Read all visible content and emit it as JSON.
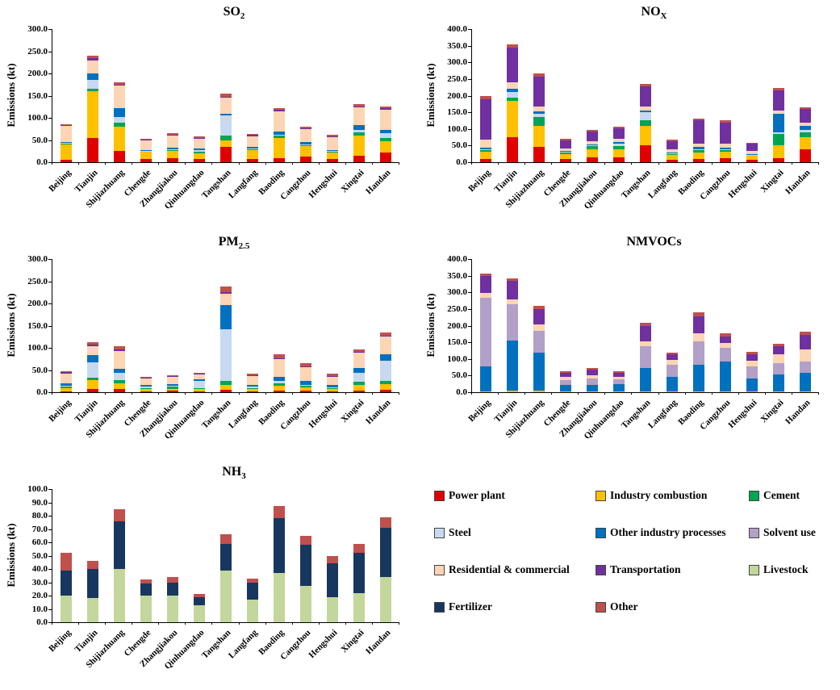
{
  "colors": {
    "power": "#E00000",
    "industry_combustion": "#FFC000",
    "cement": "#00A550",
    "steel": "#C6D9F1",
    "other_industry": "#0070C0",
    "solvent": "#B1A0C7",
    "residential": "#FCD5B4",
    "transportation": "#7030A0",
    "livestock": "#C3D69B",
    "fertilizer": "#17375E",
    "other": "#C0504D"
  },
  "legend": {
    "items": [
      {
        "key": "power",
        "label": "Power plant"
      },
      {
        "key": "industry_combustion",
        "label": "Industry combustion"
      },
      {
        "key": "cement",
        "label": "Cement"
      },
      {
        "key": "steel",
        "label": "Steel"
      },
      {
        "key": "other_industry",
        "label": "Other industry processes"
      },
      {
        "key": "solvent",
        "label": "Solvent use"
      },
      {
        "key": "residential",
        "label": "Residential & commercial"
      },
      {
        "key": "transportation",
        "label": "Transportation"
      },
      {
        "key": "livestock",
        "label": "Livestock"
      },
      {
        "key": "fertilizer",
        "label": "Fertilizer"
      },
      {
        "key": "other",
        "label": "Other"
      }
    ]
  },
  "chart_data": [
    {
      "type": "bar",
      "stacked": true,
      "title_main": "SO",
      "title_sub": "2",
      "ylabel": "Emissions (kt)",
      "ymax": 300,
      "ystep": 50,
      "cities": [
        "Beijing",
        "Tianjin",
        "Shijiazhuang",
        "Chengde",
        "Zhangjiakou",
        "Qinhuangdao",
        "Tangshan",
        "Langfang",
        "Baoding",
        "Cangzhou",
        "Hengshui",
        "Xingtai",
        "Handan"
      ],
      "series": [
        {
          "key": "power",
          "values": [
            5,
            55,
            25,
            8,
            10,
            8,
            35,
            8,
            10,
            12,
            8,
            15,
            22
          ]
        },
        {
          "key": "industry_combustion",
          "values": [
            35,
            105,
            55,
            15,
            15,
            12,
            15,
            20,
            45,
            25,
            15,
            45,
            25
          ]
        },
        {
          "key": "cement",
          "values": [
            2,
            5,
            10,
            2,
            3,
            3,
            10,
            2,
            5,
            2,
            1,
            8,
            8
          ]
        },
        {
          "key": "steel",
          "values": [
            1,
            20,
            12,
            1,
            1,
            5,
            45,
            1,
            2,
            1,
            1,
            5,
            10
          ]
        },
        {
          "key": "other_industry",
          "values": [
            3,
            15,
            20,
            2,
            3,
            3,
            5,
            3,
            8,
            5,
            3,
            10,
            8
          ]
        },
        {
          "key": "residential",
          "values": [
            35,
            30,
            50,
            22,
            28,
            22,
            35,
            25,
            45,
            30,
            28,
            40,
            45
          ]
        },
        {
          "key": "transportation",
          "values": [
            2,
            5,
            3,
            1,
            2,
            2,
            3,
            2,
            3,
            2,
            2,
            3,
            3
          ]
        },
        {
          "key": "other",
          "values": [
            3,
            5,
            5,
            2,
            3,
            3,
            7,
            3,
            4,
            3,
            3,
            5,
            4
          ]
        }
      ]
    },
    {
      "type": "bar",
      "stacked": true,
      "title_main": "NO",
      "title_sub": "X",
      "ylabel": "Emissions (kt)",
      "ymax": 400,
      "ystep": 50,
      "cities": [
        "Beijing",
        "Tianjin",
        "Shijiazhuang",
        "Chengde",
        "Zhangjiakou",
        "Qinhuangdao",
        "Tangshan",
        "Langfang",
        "Baoding",
        "Cangzhou",
        "Hengshui",
        "Xingtai",
        "Handan"
      ],
      "series": [
        {
          "key": "power",
          "values": [
            10,
            75,
            45,
            10,
            15,
            15,
            50,
            8,
            10,
            12,
            8,
            12,
            40
          ]
        },
        {
          "key": "industry_combustion",
          "values": [
            22,
            110,
            65,
            15,
            25,
            25,
            60,
            15,
            20,
            20,
            12,
            38,
            35
          ]
        },
        {
          "key": "cement",
          "values": [
            5,
            10,
            25,
            5,
            8,
            8,
            15,
            3,
            8,
            5,
            2,
            35,
            15
          ]
        },
        {
          "key": "steel",
          "values": [
            2,
            15,
            10,
            1,
            2,
            8,
            25,
            1,
            2,
            1,
            1,
            5,
            8
          ]
        },
        {
          "key": "other_industry",
          "values": [
            5,
            10,
            8,
            2,
            3,
            5,
            5,
            2,
            5,
            5,
            2,
            55,
            10
          ]
        },
        {
          "key": "residential",
          "values": [
            25,
            20,
            15,
            8,
            10,
            10,
            12,
            10,
            12,
            12,
            8,
            10,
            12
          ]
        },
        {
          "key": "transportation",
          "values": [
            120,
            105,
            90,
            25,
            30,
            30,
            60,
            25,
            70,
            65,
            22,
            60,
            40
          ]
        },
        {
          "key": "other",
          "values": [
            10,
            10,
            8,
            4,
            5,
            5,
            8,
            3,
            5,
            5,
            3,
            8,
            5
          ]
        }
      ]
    },
    {
      "type": "bar",
      "stacked": true,
      "title_main": "PM",
      "title_sub": "2.5",
      "ylabel": "Emissions (kt)",
      "ymax": 300,
      "ystep": 50,
      "cities": [
        "Beijing",
        "Tianjin",
        "Shijiazhuang",
        "Chengde",
        "Zhangjiakou",
        "Qinhuangdao",
        "Tangshan",
        "Langfang",
        "Baoding",
        "Cangzhou",
        "Hengshui",
        "Xingtai",
        "Handan"
      ],
      "series": [
        {
          "key": "power",
          "values": [
            2,
            8,
            8,
            2,
            3,
            2,
            6,
            2,
            3,
            3,
            2,
            4,
            6
          ]
        },
        {
          "key": "industry_combustion",
          "values": [
            8,
            20,
            12,
            5,
            5,
            5,
            10,
            5,
            12,
            8,
            5,
            12,
            12
          ]
        },
        {
          "key": "cement",
          "values": [
            3,
            5,
            8,
            3,
            4,
            3,
            10,
            2,
            5,
            3,
            2,
            8,
            8
          ]
        },
        {
          "key": "steel",
          "values": [
            2,
            35,
            15,
            3,
            3,
            15,
            115,
            3,
            5,
            3,
            2,
            20,
            45
          ]
        },
        {
          "key": "other_industry",
          "values": [
            5,
            15,
            10,
            3,
            3,
            5,
            55,
            5,
            10,
            8,
            5,
            10,
            15
          ]
        },
        {
          "key": "residential",
          "values": [
            22,
            20,
            40,
            15,
            17,
            10,
            25,
            20,
            40,
            32,
            20,
            35,
            40
          ]
        },
        {
          "key": "transportation",
          "values": [
            3,
            4,
            3,
            1,
            1,
            1,
            4,
            1,
            2,
            2,
            1,
            2,
            2
          ]
        },
        {
          "key": "other",
          "values": [
            3,
            5,
            8,
            2,
            3,
            2,
            13,
            3,
            8,
            6,
            4,
            6,
            6
          ]
        }
      ]
    },
    {
      "type": "bar",
      "stacked": true,
      "title_main": "NMVOCs",
      "title_sub": "",
      "ylabel": "Emissions (kt)",
      "ymax": 400,
      "ystep": 50,
      "cities": [
        "Beijing",
        "Tianjin",
        "Shijiazhuang",
        "Chengde",
        "Zhangjiakou",
        "Qinhuangdao",
        "Tangshan",
        "Langfang",
        "Baoding",
        "Cangzhou",
        "Hengshui",
        "Xingtai",
        "Handan"
      ],
      "series": [
        {
          "key": "industry_combustion",
          "values": [
            3,
            5,
            4,
            2,
            2,
            2,
            3,
            2,
            3,
            3,
            2,
            3,
            3
          ]
        },
        {
          "key": "other_industry",
          "values": [
            75,
            150,
            115,
            20,
            20,
            22,
            70,
            45,
            80,
            90,
            40,
            50,
            55
          ]
        },
        {
          "key": "solvent",
          "values": [
            205,
            110,
            65,
            15,
            20,
            15,
            65,
            35,
            70,
            40,
            35,
            35,
            35
          ]
        },
        {
          "key": "residential",
          "values": [
            15,
            15,
            20,
            10,
            10,
            8,
            15,
            15,
            25,
            15,
            18,
            25,
            35
          ]
        },
        {
          "key": "transportation",
          "values": [
            50,
            55,
            45,
            12,
            15,
            12,
            45,
            18,
            50,
            20,
            20,
            25,
            45
          ]
        },
        {
          "key": "other",
          "values": [
            8,
            8,
            10,
            5,
            5,
            5,
            10,
            5,
            12,
            8,
            6,
            8,
            10
          ]
        }
      ]
    },
    {
      "type": "bar",
      "stacked": true,
      "title_main": "NH",
      "title_sub": "3",
      "ylabel": "Emissions (kt)",
      "ymax": 100,
      "ystep": 10,
      "cities": [
        "Beijing",
        "Tianjin",
        "Shijiazhuang",
        "Chengde",
        "Zhangjiakou",
        "Qinhuangdao",
        "Tangshan",
        "Langfang",
        "Baoding",
        "Cangzhou",
        "Hengshui",
        "Xingtai",
        "Handan"
      ],
      "series": [
        {
          "key": "livestock",
          "values": [
            20,
            18,
            40,
            20,
            20,
            13,
            39,
            17,
            37,
            27,
            19,
            22,
            34
          ]
        },
        {
          "key": "fertilizer",
          "values": [
            19,
            22,
            36,
            9,
            10,
            6,
            20,
            13,
            41,
            31,
            25,
            30,
            37
          ]
        },
        {
          "key": "other",
          "values": [
            13,
            6,
            9,
            3,
            4,
            2,
            7,
            3,
            9,
            7,
            6,
            7,
            8
          ]
        }
      ]
    }
  ]
}
